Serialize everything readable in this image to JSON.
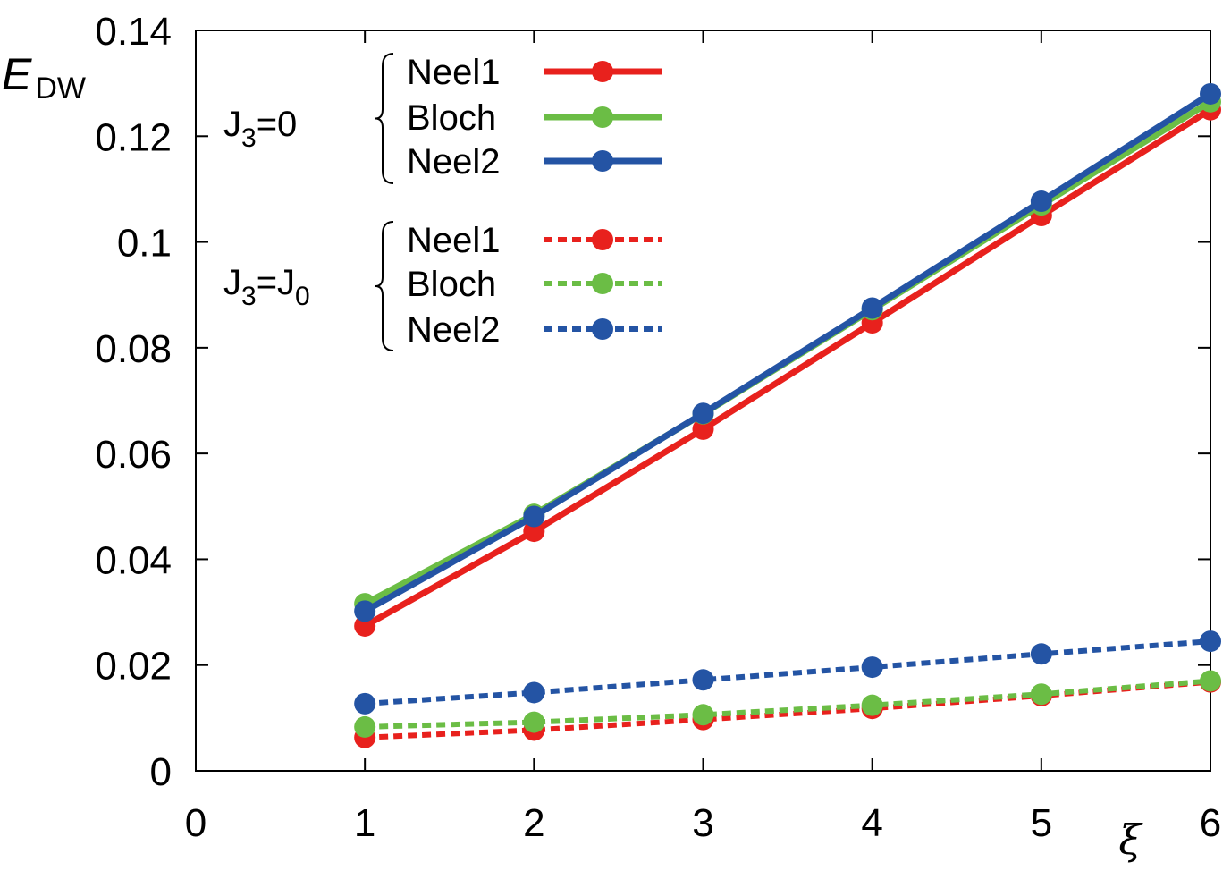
{
  "chart_data": {
    "type": "line",
    "title": "",
    "xlabel": "ξ",
    "ylabel": {
      "main": "E",
      "sub": "DW"
    },
    "xlim": [
      0,
      6
    ],
    "ylim": [
      0,
      0.14
    ],
    "x_ticks": [
      0,
      1,
      2,
      3,
      4,
      5,
      6
    ],
    "x_tick_labels": [
      "0",
      "1",
      "2",
      "3",
      "4",
      "5",
      "6"
    ],
    "y_ticks": [
      0,
      0.02,
      0.04,
      0.06,
      0.08,
      0.1,
      0.12,
      0.14
    ],
    "y_tick_labels": [
      "0",
      "0.02",
      "0.04",
      "0.06",
      "0.08",
      "0.1",
      "0.12",
      "0.14"
    ],
    "grid": false,
    "legend_groups": [
      {
        "label_main": "J",
        "label_sub": "3",
        "label_rest": "=0",
        "label_sub2": "",
        "label_rest2": ""
      },
      {
        "label_main": "J",
        "label_sub": "3",
        "label_rest": "=J",
        "label_sub2": "0",
        "label_rest2": ""
      }
    ],
    "series": [
      {
        "name": "Neel1",
        "group": 0,
        "color": "#e8211d",
        "style": "solid",
        "x": [
          1,
          2,
          3,
          4,
          5,
          6
        ],
        "values": [
          0.0274,
          0.0453,
          0.0646,
          0.0847,
          0.105,
          0.125
        ]
      },
      {
        "name": "Bloch",
        "group": 0,
        "color": "#6bbd45",
        "style": "solid",
        "x": [
          1,
          2,
          3,
          4,
          5,
          6
        ],
        "values": [
          0.0316,
          0.0485,
          0.0675,
          0.0872,
          0.107,
          0.1265
        ]
      },
      {
        "name": "Neel2",
        "group": 0,
        "color": "#2454a4",
        "style": "solid",
        "x": [
          1,
          2,
          3,
          4,
          5,
          6
        ],
        "values": [
          0.0302,
          0.0481,
          0.0676,
          0.0875,
          0.1077,
          0.128
        ]
      },
      {
        "name": "Neel1",
        "group": 1,
        "color": "#e8211d",
        "style": "dotted",
        "x": [
          1,
          2,
          3,
          4,
          5,
          6
        ],
        "values": [
          0.0063,
          0.0077,
          0.0097,
          0.0118,
          0.0142,
          0.0168
        ]
      },
      {
        "name": "Bloch",
        "group": 1,
        "color": "#6bbd45",
        "style": "dotted",
        "x": [
          1,
          2,
          3,
          4,
          5,
          6
        ],
        "values": [
          0.0083,
          0.0092,
          0.0106,
          0.0124,
          0.0145,
          0.017
        ]
      },
      {
        "name": "Neel2",
        "group": 1,
        "color": "#2454a4",
        "style": "dotted",
        "x": [
          1,
          2,
          3,
          4,
          5,
          6
        ],
        "values": [
          0.0127,
          0.0148,
          0.0172,
          0.0196,
          0.0221,
          0.0245
        ]
      }
    ]
  }
}
